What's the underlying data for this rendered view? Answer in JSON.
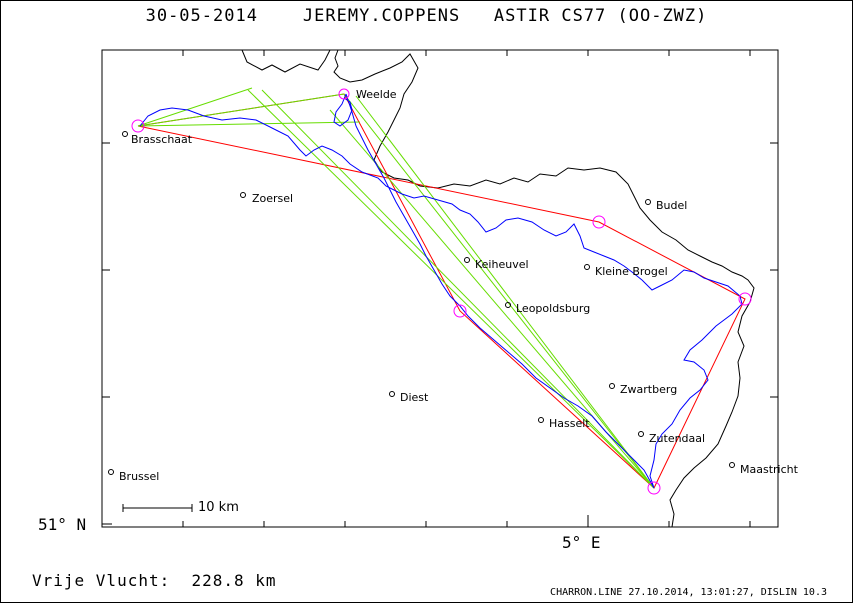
{
  "header": {
    "date": "30-05-2014",
    "pilot": "JEREMY.COPPENS",
    "glider": "ASTIR CS77 (OO-ZWZ)"
  },
  "axes": {
    "lat_label": "51° N",
    "lon_label": "5° E"
  },
  "scale": {
    "label": "10 km"
  },
  "towns": [
    {
      "name": "Weelde"
    },
    {
      "name": "Brasschaat"
    },
    {
      "name": "Zoersel"
    },
    {
      "name": "Budel"
    },
    {
      "name": "Keiheuvel"
    },
    {
      "name": "Kleine Brogel"
    },
    {
      "name": "Leopoldsburg"
    },
    {
      "name": "Diest"
    },
    {
      "name": "Zwartberg"
    },
    {
      "name": "Hasselt"
    },
    {
      "name": "Zutendaal"
    },
    {
      "name": "Brussel"
    },
    {
      "name": "Maastricht"
    }
  ],
  "footer": {
    "distance_label": "Vrije Vlucht:",
    "distance_value": "228.8 km",
    "credit": "CHARRON.LINE 27.10.2014, 13:01:27, DISLIN 10.3"
  },
  "colors": {
    "border": "#000000",
    "track": "#0000ff",
    "task": "#ff0000",
    "legs": "#66dd00",
    "turnpoints": "#ff00ff"
  }
}
